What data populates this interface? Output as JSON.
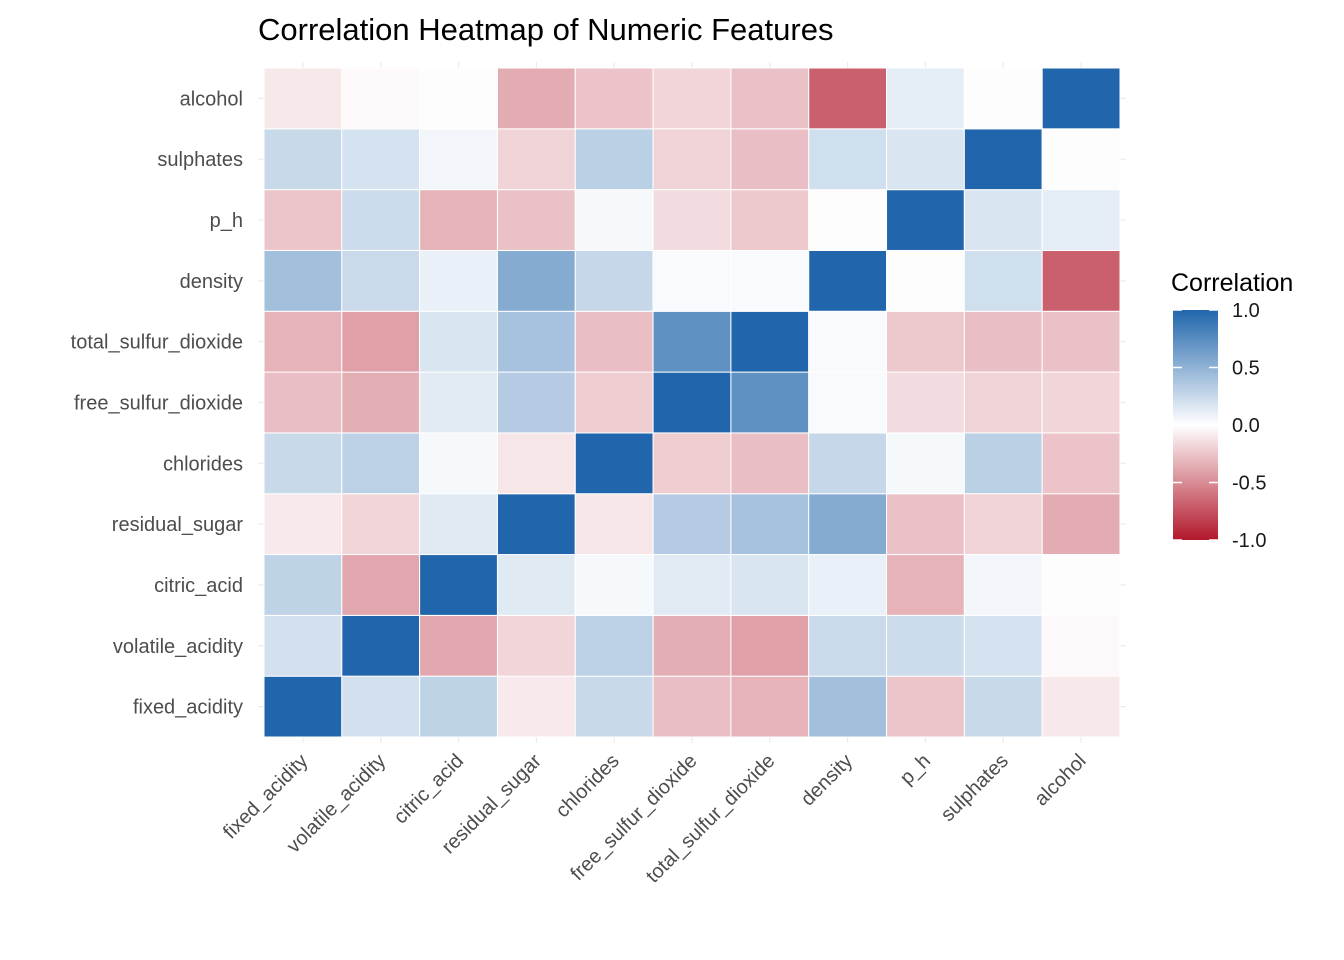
{
  "chart_data": {
    "type": "heatmap",
    "title": "Correlation Heatmap of Numeric Features",
    "xlabel": "",
    "ylabel": "",
    "variables": [
      "fixed_acidity",
      "volatile_acidity",
      "citric_acid",
      "residual_sugar",
      "chlorides",
      "free_sulfur_dioxide",
      "total_sulfur_dioxide",
      "density",
      "p_h",
      "sulphates",
      "alcohol"
    ],
    "matrix": [
      [
        1.0,
        0.2,
        0.29,
        -0.09,
        0.25,
        -0.28,
        -0.33,
        0.42,
        -0.25,
        0.25,
        -0.1
      ],
      [
        0.2,
        1.0,
        -0.38,
        -0.18,
        0.3,
        -0.35,
        -0.41,
        0.24,
        0.23,
        0.19,
        -0.03
      ],
      [
        0.29,
        -0.38,
        1.0,
        0.14,
        0.04,
        0.13,
        0.17,
        0.1,
        -0.33,
        0.06,
        -0.01
      ],
      [
        -0.09,
        -0.18,
        0.14,
        1.0,
        -0.11,
        0.34,
        0.4,
        0.55,
        -0.27,
        -0.19,
        -0.36
      ],
      [
        0.25,
        0.3,
        0.04,
        -0.11,
        1.0,
        -0.21,
        -0.28,
        0.26,
        0.04,
        0.31,
        -0.26
      ],
      [
        -0.28,
        -0.35,
        0.13,
        0.34,
        -0.21,
        1.0,
        0.72,
        0.03,
        -0.15,
        -0.19,
        -0.18
      ],
      [
        -0.33,
        -0.41,
        0.17,
        0.4,
        -0.28,
        0.72,
        1.0,
        0.03,
        -0.24,
        -0.28,
        -0.27
      ],
      [
        0.42,
        0.24,
        0.1,
        0.55,
        0.26,
        0.03,
        0.03,
        1.0,
        0.01,
        0.21,
        -0.69
      ],
      [
        -0.25,
        0.23,
        -0.33,
        -0.27,
        0.04,
        -0.15,
        -0.24,
        0.01,
        1.0,
        0.17,
        0.12
      ],
      [
        0.25,
        0.19,
        0.06,
        -0.19,
        0.31,
        -0.19,
        -0.28,
        0.21,
        0.17,
        1.0,
        0.01
      ],
      [
        -0.1,
        -0.03,
        -0.01,
        -0.36,
        -0.26,
        -0.18,
        -0.27,
        -0.69,
        0.12,
        0.01,
        1.0
      ]
    ],
    "color_scale": {
      "low": "#b2182b",
      "mid": "#ffffff",
      "high": "#2166ac",
      "limits": [
        -1,
        1
      ]
    },
    "legend": {
      "title": "Correlation",
      "position": "right",
      "breaks": [
        1.0,
        0.5,
        0.0,
        -0.5,
        -1.0
      ],
      "labels": [
        "1.0",
        "0.5",
        "0.0",
        "-0.5",
        "-1.0"
      ]
    },
    "grid": true
  }
}
